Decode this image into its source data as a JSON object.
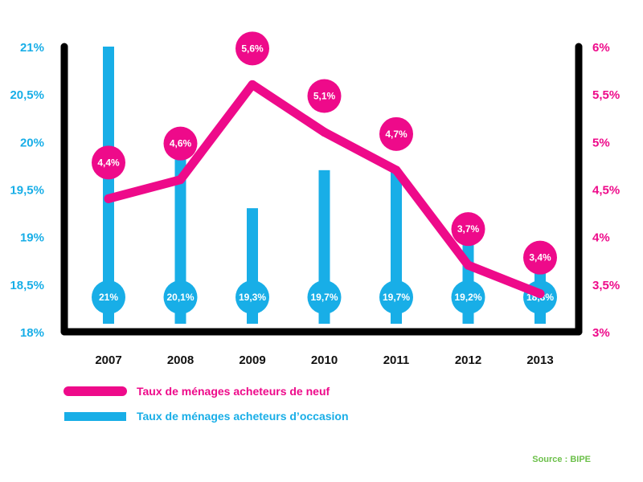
{
  "colors": {
    "primary_series": "#ee0a8a",
    "secondary_series": "#18aee7",
    "frame": "#000000",
    "source": "#6cc04a"
  },
  "chart_data": {
    "type": "bar+line",
    "categories": [
      "2007",
      "2008",
      "2009",
      "2010",
      "2011",
      "2012",
      "2013"
    ],
    "left_axis": {
      "range": [
        18,
        21
      ],
      "ticks": [
        "18%",
        "18,5%",
        "19%",
        "19,5%",
        "20%",
        "20,5%",
        "21%"
      ]
    },
    "right_axis": {
      "range": [
        3,
        6
      ],
      "ticks": [
        "3%",
        "3,5%",
        "4%",
        "4,5%",
        "5%",
        "5,5%",
        "6%"
      ]
    },
    "series": [
      {
        "name": "Taux de ménages acheteurs de neuf",
        "kind": "line",
        "axis": "right",
        "values": [
          4.4,
          4.6,
          5.6,
          5.1,
          4.7,
          3.7,
          3.4
        ],
        "labels": [
          "4,4%",
          "4,6%",
          "5,6%",
          "5,1%",
          "4,7%",
          "3,7%",
          "3,4%"
        ]
      },
      {
        "name": "Taux de ménages acheteurs d’occasion",
        "kind": "bar",
        "axis": "left",
        "values": [
          21,
          20.1,
          19.3,
          19.7,
          19.7,
          19.2,
          18.8
        ],
        "labels": [
          "21%",
          "20,1%",
          "19,3%",
          "19,7%",
          "19,7%",
          "19,2%",
          "18,8%"
        ]
      }
    ],
    "legend_position": "bottom-left",
    "grid": false
  },
  "source_note": "Source : BIPE"
}
